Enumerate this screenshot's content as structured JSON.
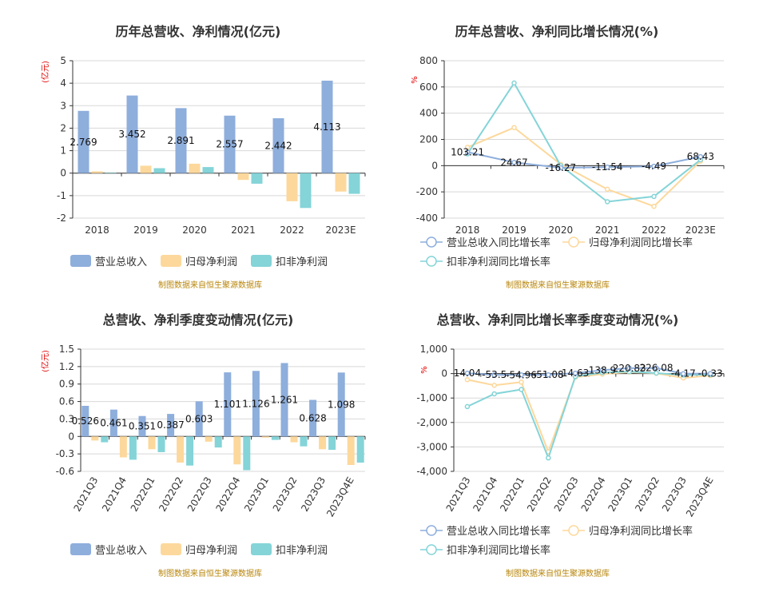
{
  "colors": {
    "revenue": "#8eaedc",
    "net_profit": "#fdd89c",
    "deducted": "#84d4d8",
    "axis": "#333333",
    "grid": "#d8d8d8",
    "unit": "#e00000",
    "credit": "#b8860b"
  },
  "credit_text": "制图数据来自恒生聚源数据库",
  "chart_data": [
    {
      "id": "annual_amount",
      "type": "bar",
      "title": "历年总营收、净利情况(亿元)",
      "ylabel": "(亿元)",
      "categories": [
        "2018",
        "2019",
        "2020",
        "2021",
        "2022",
        "2023E"
      ],
      "ylim": [
        -2,
        5
      ],
      "yticks": [
        -2,
        -1,
        0,
        1,
        2,
        3,
        4,
        5
      ],
      "ytick_labels": [
        "-2",
        "-1",
        "0",
        "1",
        "2",
        "3",
        "4",
        "5"
      ],
      "series": [
        {
          "name": "营业总收入",
          "color_key": "revenue",
          "values": [
            2.769,
            3.452,
            2.891,
            2.557,
            2.442,
            4.113
          ],
          "labels": [
            "2.769",
            "3.452",
            "2.891",
            "2.557",
            "2.442",
            "4.113"
          ]
        },
        {
          "name": "归母净利润",
          "color_key": "net_profit",
          "values": [
            0.08,
            0.33,
            0.42,
            -0.3,
            -1.25,
            -0.82
          ]
        },
        {
          "name": "扣非净利润",
          "color_key": "deducted",
          "values": [
            0.02,
            0.22,
            0.27,
            -0.47,
            -1.55,
            -0.92
          ]
        }
      ]
    },
    {
      "id": "annual_growth",
      "type": "line",
      "title": "历年总营收、净利同比增长情况(%)",
      "ylabel": "%",
      "categories": [
        "2018",
        "2019",
        "2020",
        "2021",
        "2022",
        "2023E"
      ],
      "ylim": [
        -400,
        800
      ],
      "yticks": [
        -400,
        -200,
        0,
        200,
        400,
        600,
        800
      ],
      "ytick_labels": [
        "-400",
        "-200",
        "0",
        "200",
        "400",
        "600",
        "800"
      ],
      "series": [
        {
          "name": "营业总收入同比增长率",
          "color_key": "revenue",
          "values": [
            103.21,
            24.67,
            -16.27,
            -11.54,
            -4.49,
            68.43
          ],
          "labels": [
            "103.21",
            "24.67",
            "-16.27",
            "-11.54",
            "-4.49",
            "68.43"
          ]
        },
        {
          "name": "归母净利润同比增长率",
          "color_key": "net_profit",
          "values": [
            140,
            290,
            10,
            -180,
            -310,
            35
          ]
        },
        {
          "name": "扣非净利润同比增长率",
          "color_key": "deducted",
          "values": [
            90,
            630,
            0,
            -275,
            -235,
            45
          ]
        }
      ]
    },
    {
      "id": "quarterly_amount",
      "type": "bar",
      "title": "总营收、净利季度变动情况(亿元)",
      "ylabel": "(亿元)",
      "categories": [
        "2021Q3",
        "2021Q4",
        "2022Q1",
        "2022Q2",
        "2022Q3",
        "2022Q4",
        "2023Q1",
        "2023Q2",
        "2023Q3",
        "2023Q4E"
      ],
      "ylim": [
        -0.6,
        1.5
      ],
      "yticks": [
        -0.6,
        -0.3,
        0,
        0.3,
        0.6,
        0.9,
        1.2,
        1.5
      ],
      "ytick_labels": [
        "-0.6",
        "-0.3",
        "0",
        "0.3",
        "0.6",
        "0.9",
        "1.2",
        "1.5"
      ],
      "series": [
        {
          "name": "营业总收入",
          "color_key": "revenue",
          "values": [
            0.526,
            0.461,
            0.351,
            0.387,
            0.603,
            1.101,
            1.126,
            1.261,
            0.628,
            1.098
          ],
          "labels": [
            "0.526",
            "0.461",
            "0.351",
            "0.387",
            "0.603",
            "1.101",
            "1.126",
            "1.261",
            "0.628",
            "1.098"
          ]
        },
        {
          "name": "归母净利润",
          "color_key": "net_profit",
          "values": [
            -0.07,
            -0.36,
            -0.22,
            -0.45,
            -0.09,
            -0.48,
            -0.02,
            -0.1,
            -0.22,
            -0.49
          ]
        },
        {
          "name": "扣非净利润",
          "color_key": "deducted",
          "values": [
            -0.1,
            -0.4,
            -0.27,
            -0.5,
            -0.19,
            -0.58,
            -0.06,
            -0.17,
            -0.23,
            -0.45
          ]
        }
      ]
    },
    {
      "id": "quarterly_growth",
      "type": "line",
      "title": "总营收、净利同比增长率季度变动情况(%)",
      "ylabel": "%",
      "categories": [
        "2021Q3",
        "2021Q4",
        "2022Q1",
        "2022Q2",
        "2022Q3",
        "2022Q4",
        "2023Q1",
        "2023Q2",
        "2023Q3",
        "2023Q4E"
      ],
      "ylim": [
        -4000,
        1000
      ],
      "yticks": [
        -4000,
        -3000,
        -2000,
        -1000,
        0,
        1000
      ],
      "ytick_labels": [
        "-4,000",
        "-3,000",
        "-2,000",
        "-1,000",
        "0",
        "1,000"
      ],
      "series": [
        {
          "name": "营业总收入同比增长率",
          "color_key": "revenue",
          "values": [
            14.04,
            -53.5,
            -54.96,
            -51.08,
            14.63,
            138.9,
            220.83,
            226.08,
            -4.17,
            -0.33
          ],
          "labels": [
            "14.04",
            "-53.5",
            "-54.96",
            "-51.08",
            "14.63",
            "138.9",
            "220.83",
            "226.08",
            "-4.17",
            "-0.33"
          ]
        },
        {
          "name": "归母净利润同比增长率",
          "color_key": "net_profit",
          "values": [
            -250,
            -480,
            -350,
            -3200,
            -150,
            -20,
            60,
            10,
            -180,
            -80
          ]
        },
        {
          "name": "扣非净利润同比增长率",
          "color_key": "deducted",
          "values": [
            -1350,
            -830,
            -650,
            -3450,
            -120,
            40,
            80,
            20,
            -60,
            -40
          ]
        }
      ]
    }
  ]
}
